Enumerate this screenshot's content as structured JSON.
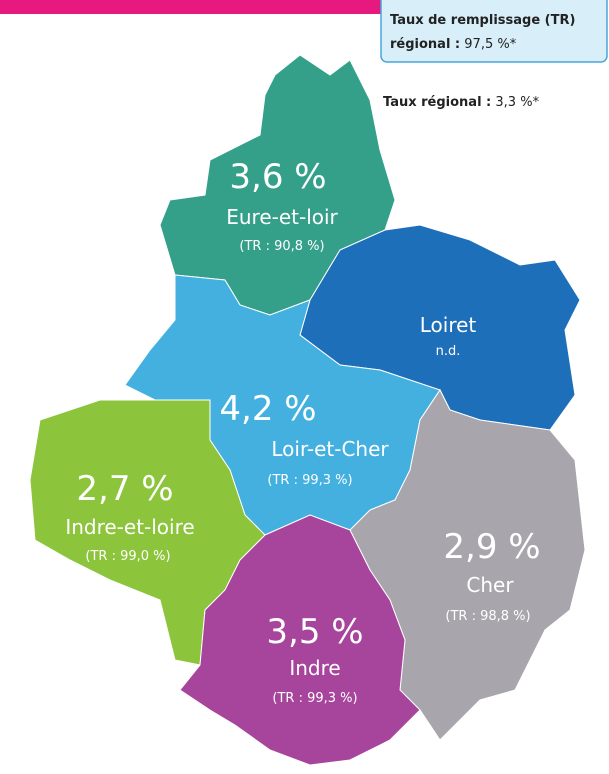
{
  "legend": {
    "title": "Taux de remplissage (TR)",
    "label": "régional :",
    "value": "97,5 %*"
  },
  "regional_rate": {
    "label": "Taux régional :",
    "value": "3,3 %*"
  },
  "regions": [
    {
      "rate": "3,6 %",
      "name": "Eure-et-loir",
      "tr": "(TR : 90,8 %)"
    },
    {
      "name": "Loiret",
      "tr": "n.d."
    },
    {
      "rate": "4,2 %",
      "name": "Loir-et-Cher",
      "tr": "(TR : 99,3 %)"
    },
    {
      "rate": "2,7 %",
      "name": "Indre-et-loire",
      "tr": "(TR : 99,0 %)"
    },
    {
      "rate": "2,9 %",
      "name": "Cher",
      "tr": "(TR : 98,8 %)"
    },
    {
      "rate": "3,5 %",
      "name": "Indre",
      "tr": "(TR : 99,3 %)"
    }
  ]
}
